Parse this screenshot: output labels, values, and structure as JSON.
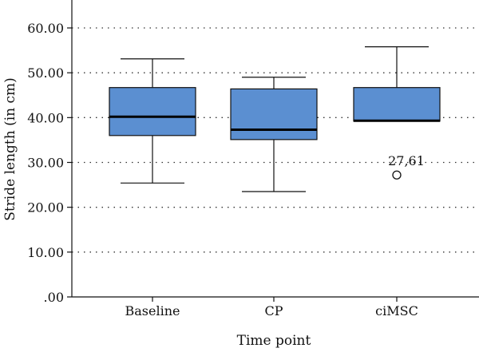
{
  "chart_data": {
    "type": "box",
    "xlabel": "Time point",
    "ylabel": "Stride length (in cm)",
    "ylim": [
      0,
      65
    ],
    "y_ticks": [
      0,
      10,
      20,
      30,
      40,
      50,
      60
    ],
    "y_tick_labels": [
      ".00",
      "10.00",
      "20.00",
      "30.00",
      "40.00",
      "50.00",
      "60.00"
    ],
    "grid": "horizontal-dotted",
    "box_color": "#5b8fd1",
    "categories": [
      "Baseline",
      "CP",
      "ciMSC"
    ],
    "boxes": [
      {
        "category": "Baseline",
        "min": 25.4,
        "q1": 36.0,
        "median": 40.2,
        "q3": 46.7,
        "max": 53.1,
        "outliers": []
      },
      {
        "category": "CP",
        "min": 23.5,
        "q1": 35.1,
        "median": 37.3,
        "q3": 46.4,
        "max": 49.0,
        "outliers": []
      },
      {
        "category": "ciMSC",
        "min": 39.2,
        "q1": 39.2,
        "median": 39.3,
        "q3": 46.7,
        "max": 55.8,
        "outliers": [
          {
            "value": 27.2,
            "label": "27,61"
          }
        ]
      }
    ]
  }
}
